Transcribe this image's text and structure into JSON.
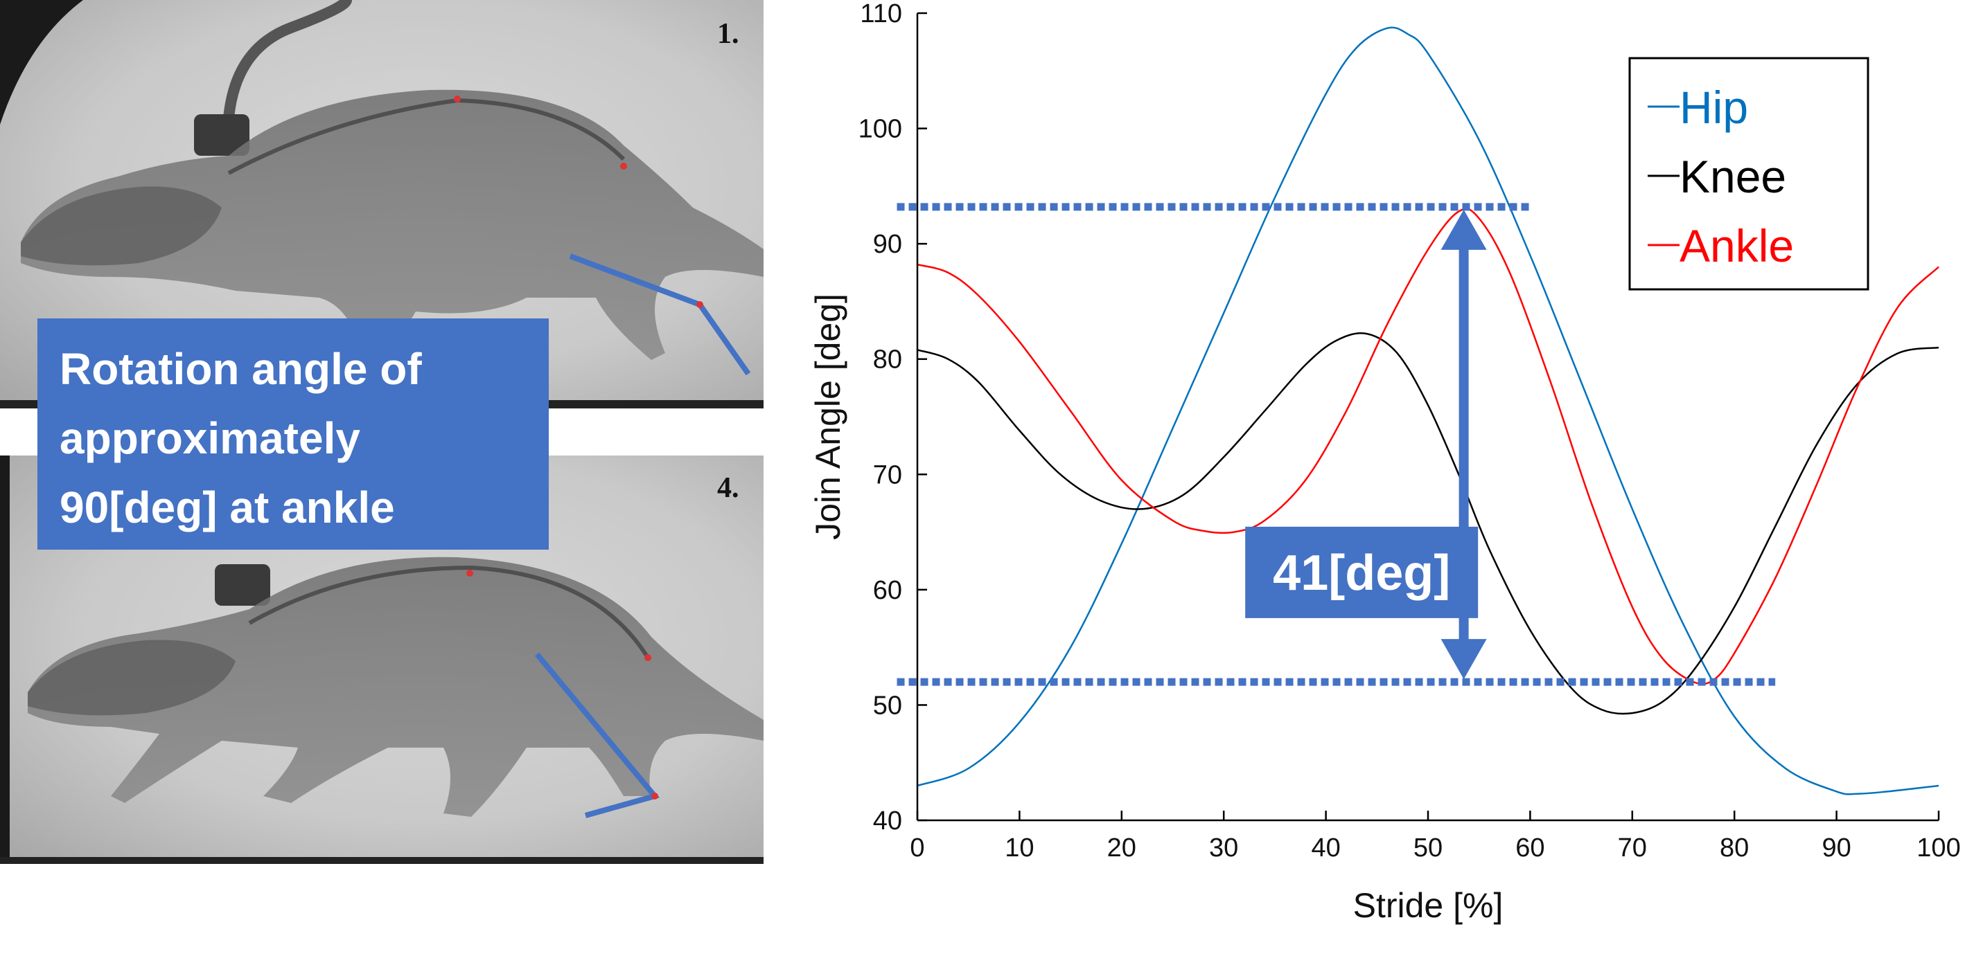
{
  "panels": [
    {
      "frame_label": "1.",
      "image": "rat-xray-frame-1"
    },
    {
      "frame_label": "4.",
      "image": "rat-xray-frame-4"
    }
  ],
  "callout": {
    "lines": [
      "Rotation angle of",
      "approximately",
      "90[deg] at ankle"
    ],
    "color": "#4472C4"
  },
  "chart_data": {
    "type": "line",
    "title": "",
    "xlabel": "Stride [%]",
    "ylabel": "Join Angle [deg]",
    "xlim": [
      0,
      100
    ],
    "ylim": [
      40,
      110
    ],
    "x_ticks": [
      0,
      10,
      20,
      30,
      40,
      50,
      60,
      70,
      80,
      90,
      100
    ],
    "y_ticks": [
      40,
      50,
      60,
      70,
      80,
      90,
      100,
      110
    ],
    "grid": false,
    "legend_position": "top-right",
    "series": [
      {
        "name": "Hip",
        "color": "#0072BD",
        "points": [
          [
            0,
            43
          ],
          [
            5,
            44.5
          ],
          [
            10,
            48.5
          ],
          [
            15,
            55
          ],
          [
            20,
            64
          ],
          [
            25,
            74
          ],
          [
            30,
            84
          ],
          [
            35,
            94
          ],
          [
            40,
            103
          ],
          [
            43,
            107
          ],
          [
            46,
            108.7
          ],
          [
            48,
            108.2
          ],
          [
            50,
            106.5
          ],
          [
            55,
            99
          ],
          [
            60,
            89
          ],
          [
            65,
            78
          ],
          [
            70,
            67
          ],
          [
            75,
            57
          ],
          [
            80,
            49
          ],
          [
            85,
            44.5
          ],
          [
            90,
            42.5
          ],
          [
            92,
            42.3
          ],
          [
            95,
            42.5
          ],
          [
            100,
            43
          ]
        ]
      },
      {
        "name": "Knee",
        "color": "#000000",
        "points": [
          [
            0,
            80.8
          ],
          [
            3,
            80
          ],
          [
            6,
            78
          ],
          [
            10,
            73.8
          ],
          [
            14,
            70
          ],
          [
            18,
            67.7
          ],
          [
            22,
            67
          ],
          [
            26,
            68.2
          ],
          [
            30,
            71.5
          ],
          [
            34,
            75.5
          ],
          [
            38,
            79.5
          ],
          [
            41,
            81.6
          ],
          [
            44,
            82.2
          ],
          [
            47,
            80.5
          ],
          [
            50,
            76
          ],
          [
            53,
            70
          ],
          [
            56,
            63.5
          ],
          [
            60,
            56.5
          ],
          [
            64,
            51.5
          ],
          [
            67,
            49.6
          ],
          [
            70,
            49.3
          ],
          [
            73,
            50.3
          ],
          [
            76,
            53
          ],
          [
            80,
            58.5
          ],
          [
            84,
            65.5
          ],
          [
            88,
            72.5
          ],
          [
            92,
            77.8
          ],
          [
            96,
            80.5
          ],
          [
            100,
            81
          ]
        ]
      },
      {
        "name": "Ankle",
        "color": "#FF0000",
        "points": [
          [
            0,
            88.2
          ],
          [
            3,
            87.5
          ],
          [
            6,
            85.5
          ],
          [
            10,
            81.5
          ],
          [
            15,
            75.5
          ],
          [
            20,
            69.5
          ],
          [
            25,
            66
          ],
          [
            28,
            65.1
          ],
          [
            31,
            65
          ],
          [
            34,
            66
          ],
          [
            38,
            69.5
          ],
          [
            42,
            75.5
          ],
          [
            46,
            83
          ],
          [
            50,
            89.5
          ],
          [
            53,
            92.8
          ],
          [
            55,
            92.2
          ],
          [
            58,
            87.5
          ],
          [
            62,
            78
          ],
          [
            66,
            67.5
          ],
          [
            70,
            58.5
          ],
          [
            73,
            54
          ],
          [
            76,
            52
          ],
          [
            78,
            52.2
          ],
          [
            80,
            54.5
          ],
          [
            84,
            61
          ],
          [
            88,
            69
          ],
          [
            92,
            77.5
          ],
          [
            96,
            84.5
          ],
          [
            100,
            88
          ]
        ]
      }
    ],
    "annotations": {
      "upper_level": 93.2,
      "lower_level": 52,
      "upper_line_x": [
        -2,
        60
      ],
      "lower_line_x": [
        -2,
        84
      ],
      "arrow_x": 53.5,
      "delta_label": "41[deg]",
      "delta_label_center_x": 43.5,
      "delta_label_center_y": 61.5,
      "color": "#4472C4"
    }
  }
}
